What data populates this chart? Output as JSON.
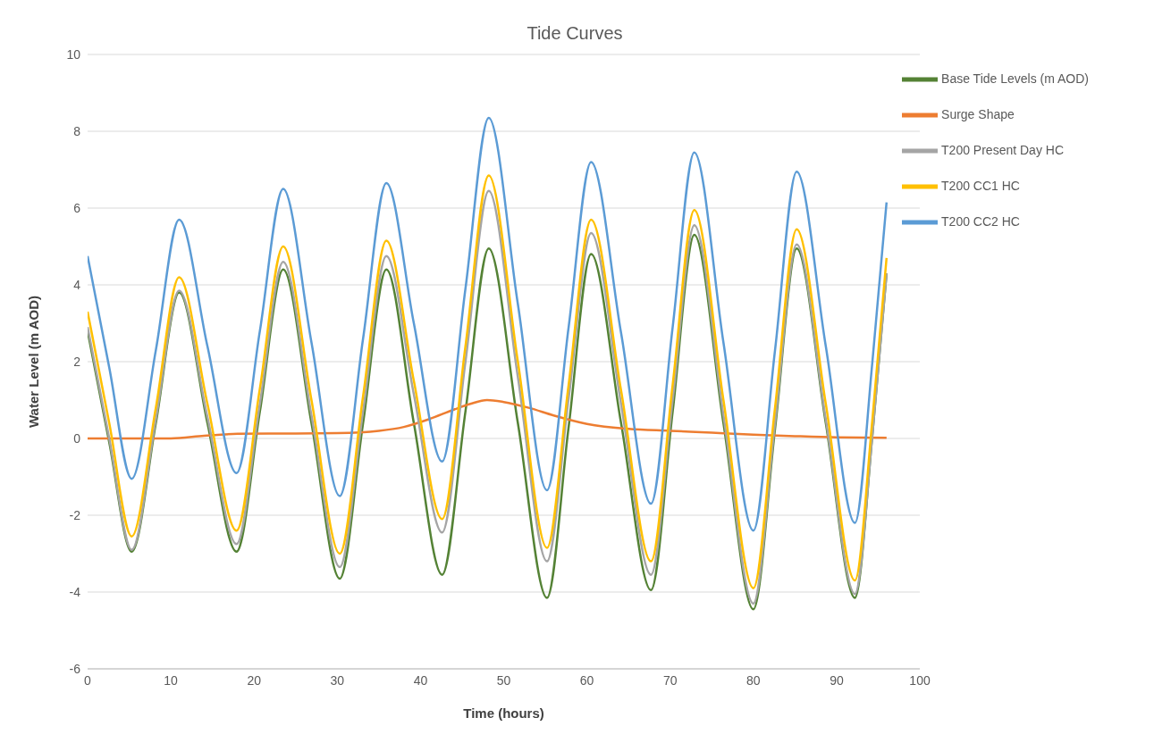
{
  "chart_data": {
    "type": "line",
    "title": "Tide Curves",
    "xlabel": "Time (hours)",
    "ylabel": "Water Level (m AOD)",
    "xlim": [
      0,
      100
    ],
    "xticks": [
      0,
      10,
      20,
      30,
      40,
      50,
      60,
      70,
      80,
      90,
      100
    ],
    "ylim": [
      -6,
      10
    ],
    "yticks": [
      -6,
      -4,
      -2,
      0,
      2,
      4,
      6,
      8,
      10
    ],
    "grid": "y",
    "legend": "top right",
    "marker": "none",
    "line_style": "solid",
    "series": [
      {
        "name": "Base Tide Levels (m AOD)",
        "color": "#548235",
        "x": [
          0,
          2.6,
          5.3,
          8.2,
          11.0,
          14.4,
          17.9,
          20.7,
          23.5,
          26.9,
          30.3,
          33.1,
          35.9,
          39.2,
          42.6,
          45.4,
          48.2,
          51.7,
          55.2,
          57.8,
          60.5,
          64.1,
          67.7,
          70.3,
          72.9,
          76.4,
          80.0,
          82.6,
          85.2,
          88.7,
          92.2,
          94.3,
          96
        ],
        "values": [
          2.8,
          -0.1,
          -2.95,
          0.4,
          3.8,
          0.4,
          -2.95,
          0.7,
          4.4,
          0.4,
          -3.65,
          0.4,
          4.4,
          0.4,
          -3.55,
          0.7,
          4.95,
          0.4,
          -4.15,
          0.3,
          4.8,
          0.4,
          -3.95,
          0.7,
          5.3,
          0.4,
          -4.45,
          0.25,
          4.95,
          0.4,
          -4.15,
          0.1,
          4.3
        ]
      },
      {
        "name": "Surge Shape",
        "color": "#ed7d31",
        "x": [
          0,
          10,
          14,
          18,
          25,
          30,
          35,
          38,
          41,
          44,
          46,
          48,
          50,
          53,
          56,
          60,
          65,
          70,
          75,
          80,
          85,
          90,
          96
        ],
        "values": [
          0,
          0,
          0.07,
          0.12,
          0.13,
          0.14,
          0.2,
          0.3,
          0.5,
          0.75,
          0.9,
          1.0,
          0.95,
          0.8,
          0.6,
          0.38,
          0.25,
          0.2,
          0.15,
          0.1,
          0.06,
          0.03,
          0.02
        ]
      },
      {
        "name": "T200 Present Day HC",
        "color": "#a5a5a5",
        "x": [
          0,
          2.6,
          5.3,
          8.2,
          11.0,
          14.4,
          17.9,
          20.7,
          23.5,
          26.9,
          30.3,
          33.1,
          35.9,
          39.2,
          42.6,
          45.4,
          48.2,
          51.7,
          55.2,
          57.8,
          60.5,
          64.1,
          67.7,
          70.3,
          72.9,
          76.4,
          80.0,
          82.6,
          85.2,
          88.7,
          92.2,
          94.3,
          96
        ],
        "values": [
          2.9,
          0,
          -2.9,
          0.5,
          3.85,
          0.55,
          -2.75,
          0.9,
          4.6,
          0.6,
          -3.35,
          0.7,
          4.75,
          1.15,
          -2.45,
          2.0,
          6.45,
          1.6,
          -3.2,
          1.05,
          5.35,
          0.9,
          -3.55,
          1.0,
          5.55,
          0.6,
          -4.3,
          0.4,
          5.05,
          0.5,
          -4.05,
          0.1,
          4.3
        ]
      },
      {
        "name": "T200 CC1 HC",
        "color": "#ffc000",
        "x": [
          0,
          2.6,
          5.3,
          8.2,
          11.0,
          14.4,
          17.9,
          20.7,
          23.5,
          26.9,
          30.3,
          33.1,
          35.9,
          39.2,
          42.6,
          45.4,
          48.2,
          51.7,
          55.2,
          57.8,
          60.5,
          64.1,
          67.7,
          70.3,
          72.9,
          76.4,
          80.0,
          82.6,
          85.2,
          88.7,
          92.2,
          94.3,
          96
        ],
        "values": [
          3.3,
          0.4,
          -2.55,
          0.8,
          4.2,
          0.9,
          -2.4,
          1.3,
          5.0,
          1.0,
          -3.0,
          1.1,
          5.15,
          1.5,
          -2.1,
          2.4,
          6.85,
          2.0,
          -2.85,
          1.4,
          5.7,
          1.25,
          -3.2,
          1.4,
          5.95,
          1.0,
          -3.9,
          0.8,
          5.45,
          0.9,
          -3.7,
          0.5,
          4.7
        ]
      },
      {
        "name": "T200 CC2 HC",
        "color": "#5b9bd5",
        "x": [
          0,
          2.6,
          5.3,
          8.2,
          11.0,
          14.4,
          17.9,
          20.7,
          23.5,
          26.9,
          30.3,
          33.1,
          35.9,
          39.2,
          42.6,
          45.4,
          48.2,
          51.7,
          55.2,
          57.8,
          60.5,
          64.1,
          67.7,
          70.3,
          72.9,
          76.4,
          80.0,
          82.6,
          85.2,
          88.7,
          92.2,
          94.3,
          96
        ],
        "values": [
          4.75,
          1.85,
          -1.05,
          2.3,
          5.7,
          2.4,
          -0.9,
          2.8,
          6.5,
          2.5,
          -1.5,
          2.6,
          6.65,
          3.0,
          -0.6,
          3.9,
          8.35,
          3.5,
          -1.35,
          2.9,
          7.2,
          2.75,
          -1.7,
          2.9,
          7.45,
          2.5,
          -2.4,
          2.3,
          6.95,
          2.4,
          -2.2,
          2.0,
          6.15
        ]
      }
    ]
  }
}
